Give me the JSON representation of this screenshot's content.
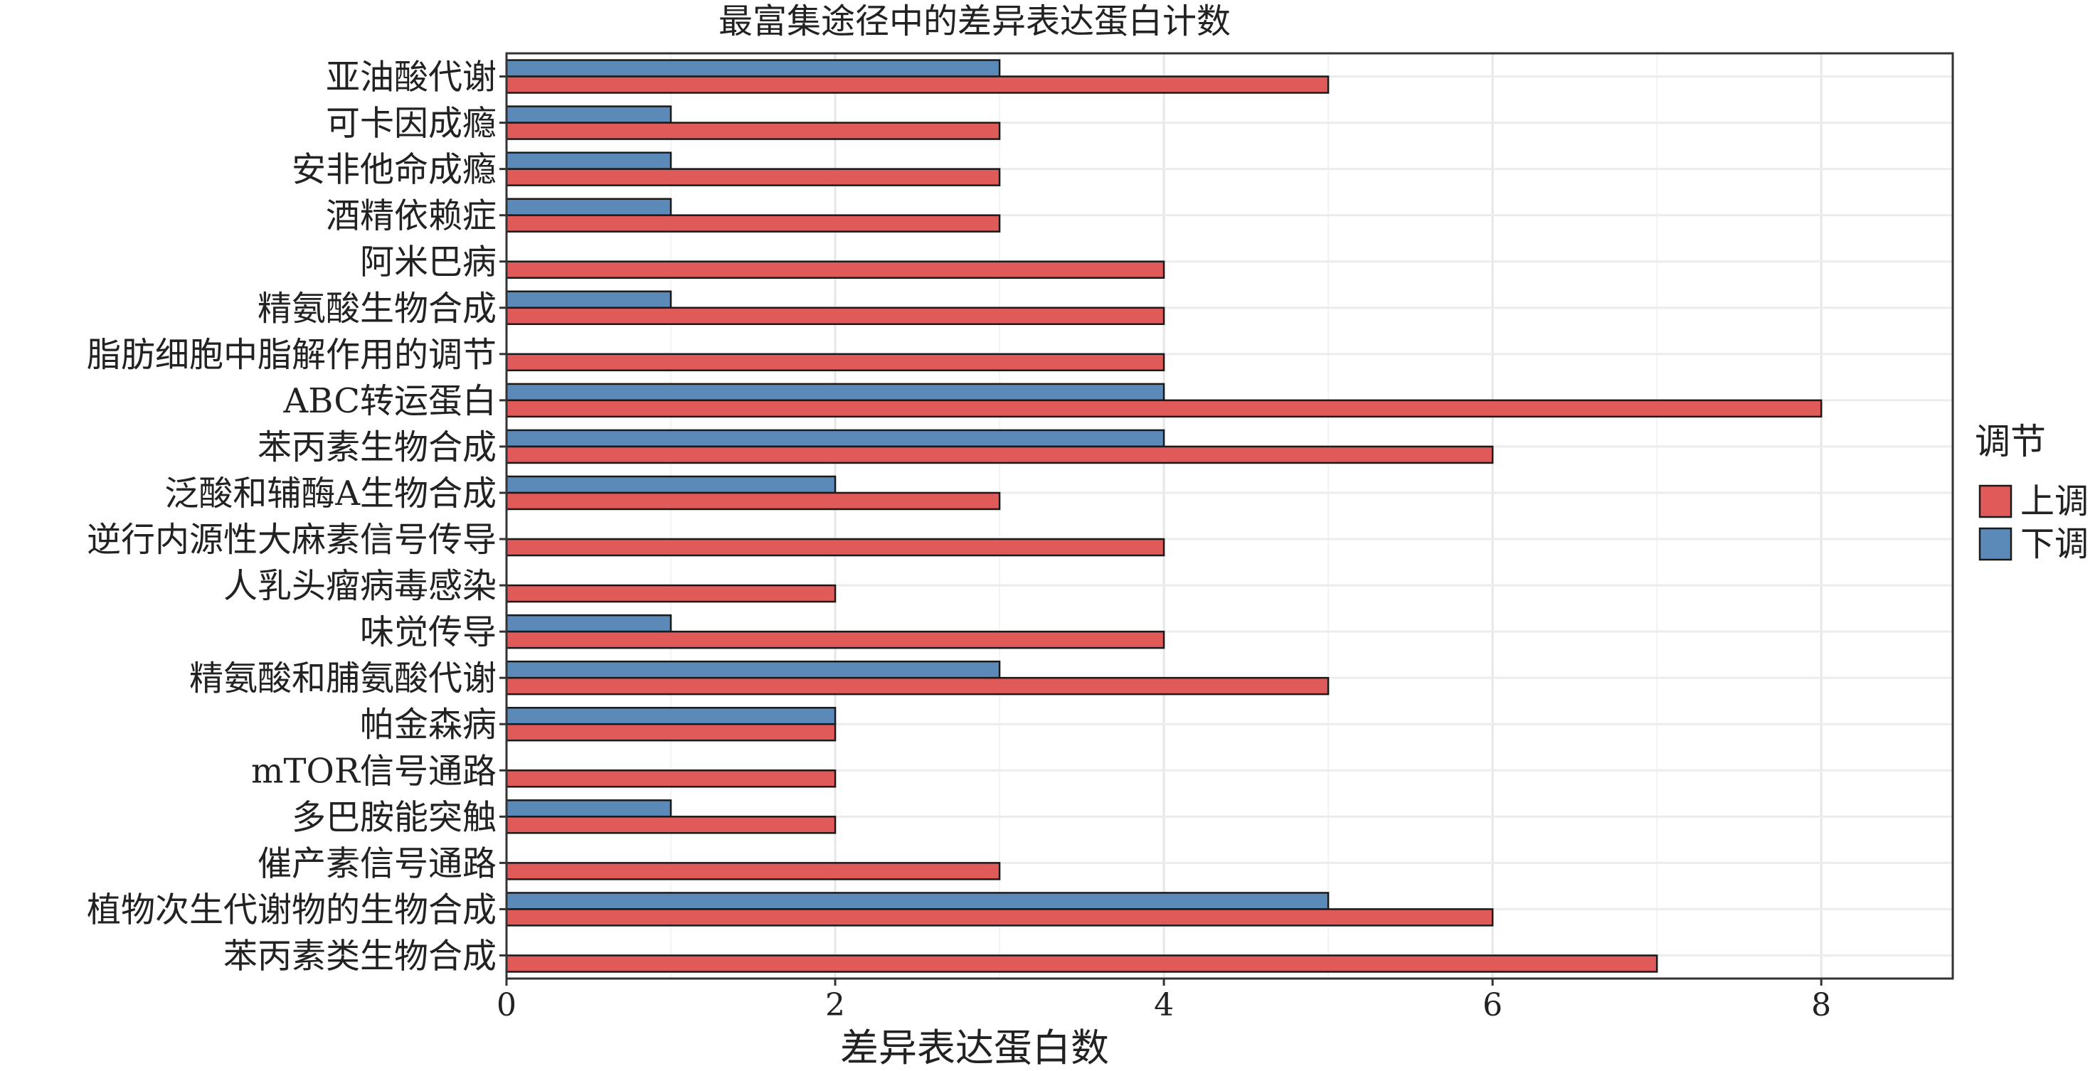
{
  "chart_data": {
    "type": "bar",
    "orientation": "horizontal",
    "title": "最富集途径中的差异表达蛋白计数",
    "xlabel": "差异表达蛋白数",
    "ylabel": "",
    "xlim": [
      0,
      8.8
    ],
    "x_ticks": [
      0,
      2,
      4,
      6,
      8
    ],
    "grid": true,
    "legend": {
      "title": "调节",
      "position": "right"
    },
    "categories": [
      "亚油酸代谢",
      "可卡因成瘾",
      "安非他命成瘾",
      "酒精依赖症",
      "阿米巴病",
      "精氨酸生物合成",
      "脂肪细胞中脂解作用的调节",
      "ABC转运蛋白",
      "苯丙素生物合成",
      "泛酸和辅酶A生物合成",
      "逆行内源性大麻素信号传导",
      "人乳头瘤病毒感染",
      "味觉传导",
      "精氨酸和脯氨酸代谢",
      "帕金森病",
      "mTOR信号通路",
      "多巴胺能突触",
      "催产素信号通路",
      "植物次生代谢物的生物合成",
      "苯丙素类生物合成"
    ],
    "series": [
      {
        "name": "上调",
        "color": "#e05a5a",
        "values": [
          5,
          3,
          3,
          3,
          4,
          4,
          4,
          8,
          6,
          3,
          4,
          2,
          4,
          5,
          2,
          2,
          2,
          3,
          6,
          7
        ]
      },
      {
        "name": "下调",
        "color": "#5b8ab8",
        "values": [
          3,
          1,
          1,
          1,
          0,
          1,
          0,
          4,
          4,
          2,
          0,
          0,
          1,
          3,
          2,
          0,
          1,
          0,
          5,
          0
        ]
      }
    ]
  }
}
